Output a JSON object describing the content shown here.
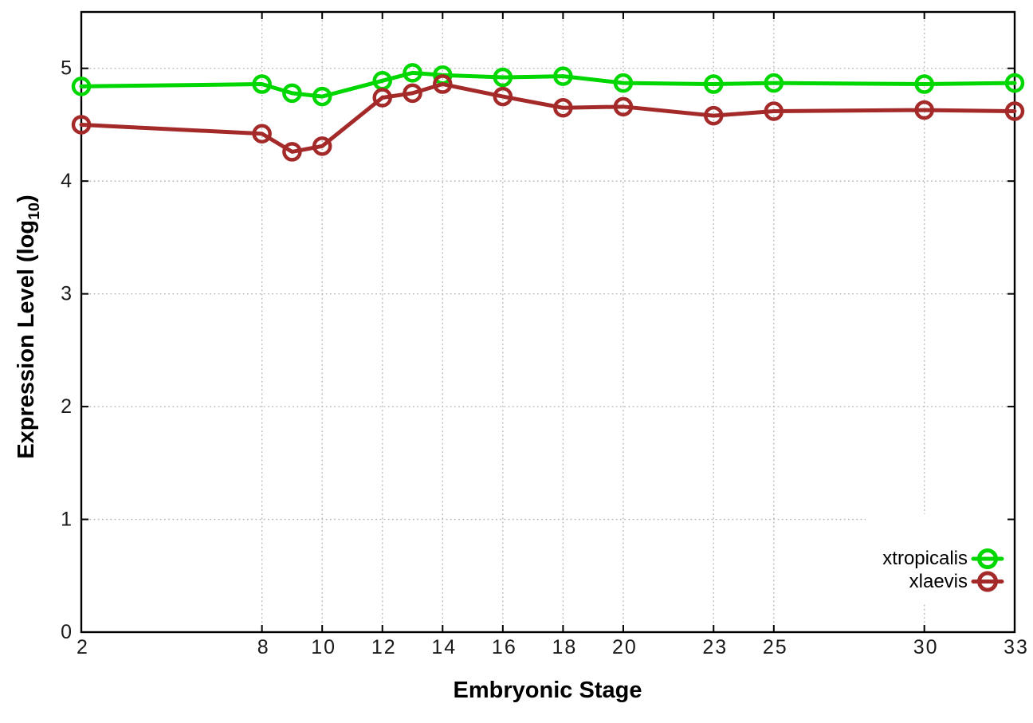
{
  "figure": {
    "y_axis_label_main": "Expression Level (log",
    "y_axis_label_sub": "10",
    "y_axis_label_end": ")",
    "x_axis_label": "Embryonic Stage"
  },
  "chart_data": {
    "type": "line",
    "title": "",
    "xlabel": "Embryonic Stage",
    "ylabel": "Expression Level (log10)",
    "x": [
      2,
      8,
      9,
      10,
      12,
      13,
      14,
      16,
      18,
      20,
      23,
      25,
      30,
      33
    ],
    "series": [
      {
        "name": "xtropicalis",
        "color": "#00d600",
        "values": [
          4.84,
          4.86,
          4.78,
          4.75,
          4.89,
          4.96,
          4.94,
          4.92,
          4.93,
          4.87,
          4.86,
          4.87,
          4.86,
          4.87
        ]
      },
      {
        "name": "xlaevis",
        "color": "#a42a2a",
        "values": [
          4.5,
          4.42,
          4.26,
          4.31,
          4.74,
          4.78,
          4.86,
          4.75,
          4.65,
          4.66,
          4.58,
          4.62,
          4.63,
          4.62
        ]
      }
    ],
    "xlim": [
      2,
      33
    ],
    "ylim": [
      0,
      5.5
    ],
    "x_ticks": [
      2,
      8,
      10,
      12,
      14,
      16,
      18,
      20,
      23,
      25,
      30,
      33
    ],
    "y_ticks": [
      0,
      1,
      2,
      3,
      4,
      5
    ],
    "grid": true,
    "grid_color": "#b3b3b3",
    "border_color": "#000000",
    "text_color": "#1a1a1a",
    "marker": "open-circle",
    "legend_position": "inside-right-lower"
  }
}
